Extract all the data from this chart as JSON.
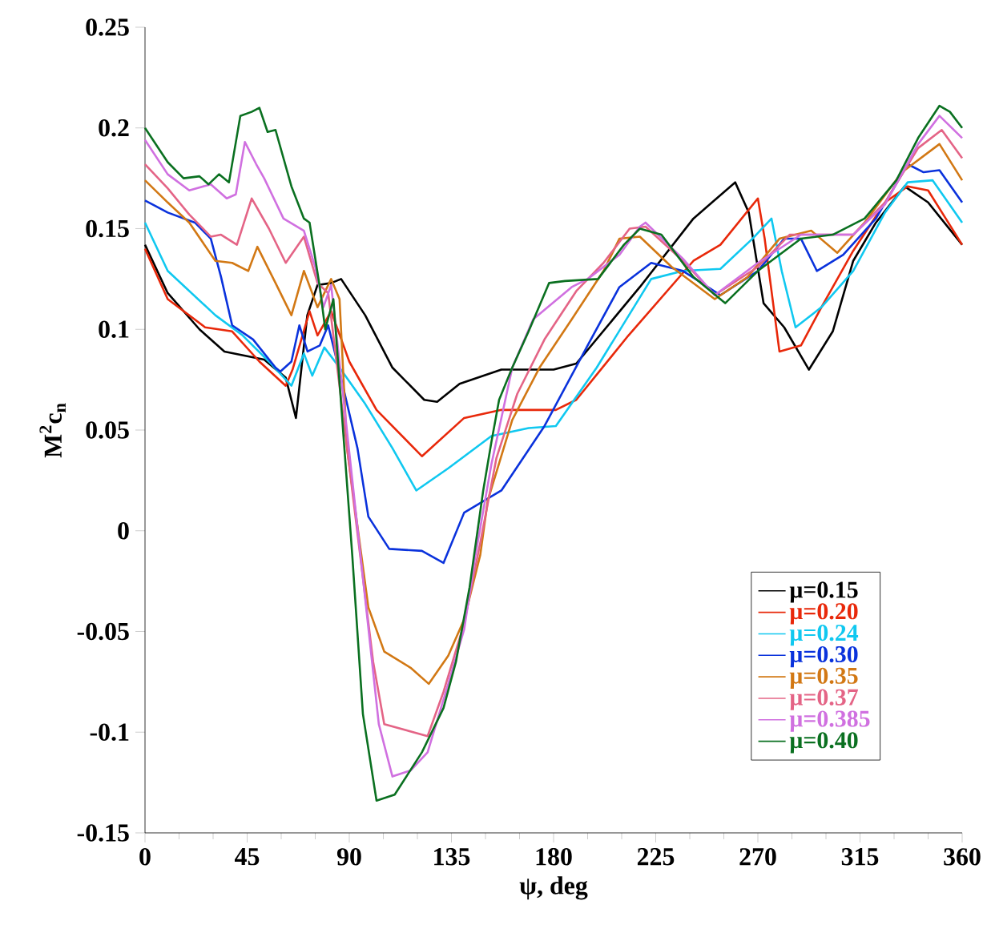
{
  "chart_data": {
    "type": "line",
    "xlabel": "ψ, deg",
    "ylabel": "M$^{2}$c$_{n}$",
    "xlim": [
      0,
      360
    ],
    "xticks": [
      0,
      45,
      90,
      135,
      180,
      225,
      270,
      315,
      360
    ],
    "ylim": [
      -0.15,
      0.25
    ],
    "yticks": [
      -0.15,
      -0.1,
      -0.05,
      0,
      0.05,
      0.1,
      0.15,
      0.2,
      0.25
    ],
    "grid": false,
    "legend": "bottom right",
    "series": [
      {
        "name": "μ=0.15",
        "color": "#000000",
        "x": [
          0,
          10,
          24,
          35,
          52.5,
          62,
          66.5,
          71.5,
          76,
          82,
          86.4,
          97,
          109,
          123,
          128.7,
          138.6,
          157,
          180,
          190,
          218,
          241.6,
          260,
          266,
          272.5,
          281.6,
          292.5,
          303,
          312,
          322,
          334.6,
          345,
          360
        ],
        "values": [
          0.142,
          0.118,
          0.1,
          0.089,
          0.085,
          0.076,
          0.056,
          0.107,
          0.122,
          0.123,
          0.125,
          0.107,
          0.081,
          0.065,
          0.064,
          0.073,
          0.08,
          0.08,
          0.083,
          0.121,
          0.155,
          0.173,
          0.158,
          0.113,
          0.101,
          0.08,
          0.099,
          0.134,
          0.153,
          0.171,
          0.163,
          0.142
        ]
      },
      {
        "name": "μ=0.20",
        "color": "#e8280a",
        "x": [
          0,
          10,
          26.5,
          38.4,
          50.4,
          62,
          65,
          72.5,
          76,
          82,
          90,
          102,
          122,
          140.6,
          157,
          181,
          190,
          213,
          241.6,
          253.5,
          270,
          273,
          279.5,
          289,
          298,
          312,
          326,
          336,
          345,
          360
        ],
        "values": [
          0.14,
          0.115,
          0.101,
          0.099,
          0.084,
          0.072,
          0.08,
          0.109,
          0.097,
          0.109,
          0.084,
          0.06,
          0.037,
          0.056,
          0.06,
          0.06,
          0.065,
          0.097,
          0.134,
          0.142,
          0.165,
          0.145,
          0.089,
          0.092,
          0.111,
          0.139,
          0.163,
          0.171,
          0.169,
          0.142
        ]
      },
      {
        "name": "μ=0.24",
        "color": "#10c8f0",
        "x": [
          0,
          10,
          31,
          43,
          54.6,
          64.5,
          70,
          73.7,
          79,
          85.7,
          97,
          109,
          119.5,
          133.6,
          152.6,
          169,
          181,
          199,
          223,
          237,
          253.5,
          267.6,
          276,
          280.5,
          286.6,
          298,
          312,
          326,
          336,
          347,
          360
        ],
        "values": [
          0.153,
          0.129,
          0.107,
          0.097,
          0.084,
          0.072,
          0.088,
          0.077,
          0.091,
          0.081,
          0.063,
          0.041,
          0.02,
          0.031,
          0.047,
          0.051,
          0.052,
          0.081,
          0.125,
          0.129,
          0.13,
          0.145,
          0.155,
          0.129,
          0.101,
          0.111,
          0.129,
          0.158,
          0.173,
          0.174,
          0.153
        ]
      },
      {
        "name": "μ=0.30",
        "color": "#0a32dc",
        "x": [
          0,
          10,
          22,
          29,
          33.5,
          38.4,
          47.6,
          57.5,
          59.6,
          64.5,
          68,
          71.6,
          77,
          80.7,
          85.7,
          93.6,
          98.4,
          107.6,
          122,
          131.5,
          140.6,
          157,
          176,
          195,
          209,
          223,
          237,
          253.5,
          270,
          281.6,
          289,
          296,
          307.6,
          322,
          336,
          343,
          350,
          360
        ],
        "values": [
          0.164,
          0.158,
          0.153,
          0.145,
          0.126,
          0.102,
          0.095,
          0.081,
          0.079,
          0.084,
          0.102,
          0.089,
          0.092,
          0.102,
          0.079,
          0.041,
          0.007,
          -0.009,
          -0.01,
          -0.016,
          0.009,
          0.02,
          0.052,
          0.092,
          0.121,
          0.133,
          0.129,
          0.117,
          0.129,
          0.145,
          0.145,
          0.129,
          0.137,
          0.155,
          0.182,
          0.178,
          0.179,
          0.163
        ]
      },
      {
        "name": "μ=0.35",
        "color": "#d27814",
        "x": [
          0,
          10,
          19.5,
          31,
          38.4,
          45.5,
          49.5,
          57.5,
          64.5,
          70,
          76,
          82,
          85.7,
          89,
          98.4,
          105.4,
          117,
          125,
          133.6,
          140.6,
          147.7,
          151,
          161.8,
          173.8,
          188,
          202,
          209,
          218,
          232,
          251,
          265.5,
          279.5,
          293.5,
          305,
          317,
          333.5,
          350,
          360
        ],
        "values": [
          0.174,
          0.163,
          0.153,
          0.134,
          0.133,
          0.129,
          0.141,
          0.123,
          0.107,
          0.129,
          0.111,
          0.125,
          0.115,
          0.041,
          -0.038,
          -0.06,
          -0.068,
          -0.076,
          -0.062,
          -0.044,
          -0.012,
          0.015,
          0.055,
          0.081,
          0.105,
          0.129,
          0.145,
          0.146,
          0.131,
          0.115,
          0.126,
          0.145,
          0.149,
          0.138,
          0.153,
          0.178,
          0.192,
          0.174
        ]
      },
      {
        "name": "μ=0.37",
        "color": "#e46486",
        "x": [
          0,
          10,
          19.5,
          29,
          33.5,
          40.5,
          47,
          54.6,
          62,
          70,
          76,
          80.7,
          100.5,
          105.4,
          124.5,
          131.5,
          140.6,
          147.7,
          154.8,
          164,
          176,
          190,
          202,
          213.5,
          220.5,
          237,
          251,
          270,
          284,
          298,
          312,
          326,
          340.6,
          351,
          360
        ],
        "values": [
          0.182,
          0.17,
          0.157,
          0.146,
          0.147,
          0.142,
          0.165,
          0.15,
          0.133,
          0.146,
          0.123,
          0.118,
          -0.065,
          -0.096,
          -0.102,
          -0.08,
          -0.046,
          -0.006,
          0.036,
          0.068,
          0.095,
          0.119,
          0.133,
          0.15,
          0.151,
          0.134,
          0.117,
          0.131,
          0.147,
          0.147,
          0.147,
          0.163,
          0.19,
          0.199,
          0.185
        ]
      },
      {
        "name": "μ=0.385",
        "color": "#d070e0",
        "x": [
          0,
          10,
          19.5,
          29,
          36,
          40,
          44,
          49,
          52.5,
          61,
          70,
          75,
          78.6,
          82,
          103,
          109,
          117,
          124.5,
          133.6,
          140.6,
          145.6,
          152.6,
          161.8,
          171,
          188,
          195,
          209,
          218,
          220.5,
          237,
          251,
          270,
          289,
          312,
          326,
          340.6,
          350,
          360
        ],
        "values": [
          0.194,
          0.177,
          0.169,
          0.172,
          0.165,
          0.167,
          0.193,
          0.182,
          0.175,
          0.155,
          0.149,
          0.131,
          0.111,
          0.122,
          -0.096,
          -0.122,
          -0.119,
          -0.11,
          -0.076,
          -0.049,
          -0.012,
          0.033,
          0.081,
          0.105,
          0.121,
          0.125,
          0.137,
          0.151,
          0.153,
          0.135,
          0.117,
          0.133,
          0.147,
          0.147,
          0.162,
          0.192,
          0.206,
          0.195
        ]
      },
      {
        "name": "μ=0.40",
        "color": "#0a7020",
        "x": [
          0,
          10,
          17,
          24,
          28,
          32.6,
          37,
          42,
          47,
          50.4,
          54,
          57.5,
          64.5,
          70,
          72.5,
          77,
          79.4,
          83,
          91.3,
          96,
          102,
          110,
          122,
          131.5,
          137,
          143,
          149,
          152.6,
          156,
          161.8,
          169,
          178,
          185,
          199.6,
          211,
          218,
          227.5,
          241.6,
          255.6,
          270,
          289,
          303,
          317,
          331,
          340.6,
          350,
          354.6,
          360
        ],
        "values": [
          0.2,
          0.183,
          0.175,
          0.176,
          0.172,
          0.177,
          0.173,
          0.206,
          0.208,
          0.21,
          0.198,
          0.199,
          0.171,
          0.155,
          0.153,
          0.121,
          0.1,
          0.115,
          -0.012,
          -0.091,
          -0.134,
          -0.131,
          -0.11,
          -0.088,
          -0.065,
          -0.028,
          0.02,
          0.044,
          0.065,
          0.081,
          0.099,
          0.123,
          0.124,
          0.125,
          0.142,
          0.15,
          0.147,
          0.126,
          0.113,
          0.129,
          0.145,
          0.147,
          0.155,
          0.174,
          0.195,
          0.211,
          0.208,
          0.2
        ]
      }
    ]
  }
}
